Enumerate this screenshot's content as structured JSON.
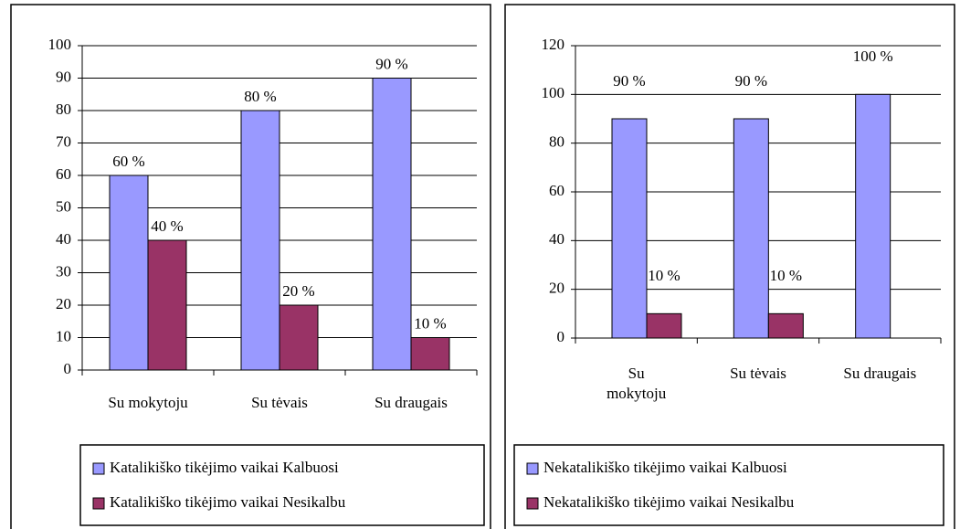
{
  "chart_data": [
    {
      "type": "bar",
      "categories": [
        "Su mokytoju",
        "Su tėvais",
        "Su draugais"
      ],
      "series": [
        {
          "name": "Katalikiško tikėjimo vaikai Kalbuosi",
          "color": "#9999ff",
          "values": [
            60,
            80,
            90
          ],
          "value_labels": [
            "60 %",
            "80 %",
            "90 %"
          ]
        },
        {
          "name": "Katalikiško tikėjimo vaikai Nesikalbu",
          "color": "#993366",
          "values": [
            40,
            20,
            10
          ],
          "value_labels": [
            "40 %",
            "20 %",
            "10 %"
          ]
        }
      ],
      "ylim": [
        0,
        100
      ],
      "yticks": [
        0,
        10,
        20,
        30,
        40,
        50,
        60,
        70,
        80,
        90,
        100
      ],
      "grid": true,
      "legend": "bottom"
    },
    {
      "type": "bar",
      "categories": [
        "Su mokytoju",
        "Su tėvais",
        "Su draugais"
      ],
      "series": [
        {
          "name": "Nekatalikiško tikėjimo vaikai Kalbuosi",
          "color": "#9999ff",
          "values": [
            90,
            90,
            100
          ],
          "value_labels": [
            "90 %",
            "90 %",
            "100 %"
          ]
        },
        {
          "name": "Nekatalikiško tikėjimo vaikai Nesikalbu",
          "color": "#993366",
          "values": [
            10,
            10,
            0
          ],
          "value_labels": [
            "10 %",
            "10 %",
            null
          ]
        }
      ],
      "ylim": [
        0,
        120
      ],
      "yticks": [
        0,
        20,
        40,
        60,
        80,
        100,
        120
      ],
      "grid": true,
      "legend": "bottom"
    }
  ]
}
